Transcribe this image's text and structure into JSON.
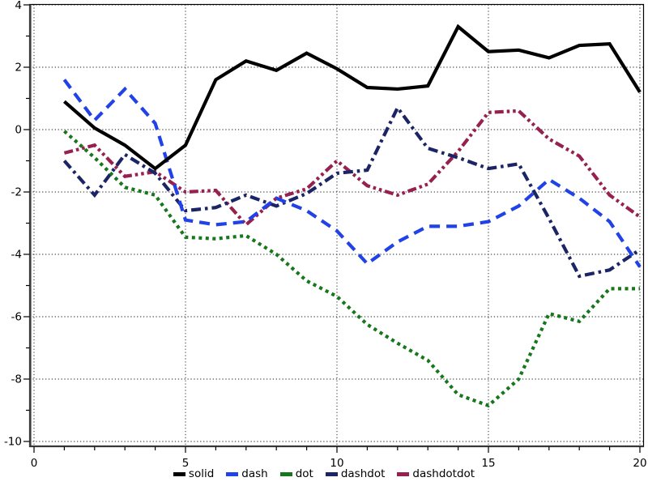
{
  "chart_data": {
    "type": "line",
    "title": "",
    "xlabel": "",
    "ylabel": "",
    "xlim": [
      0,
      20
    ],
    "ylim": [
      -10,
      4
    ],
    "grid": "dotted",
    "legend_position": "bottom-center",
    "x": [
      1,
      2,
      3,
      4,
      5,
      6,
      7,
      8,
      9,
      10,
      11,
      12,
      13,
      14,
      15,
      16,
      17,
      18,
      19,
      20
    ],
    "x_major_ticks": [
      0,
      5,
      10,
      15,
      20
    ],
    "x_tick_labels": [
      "0",
      "5",
      "10",
      "15",
      "20"
    ],
    "y_major_ticks": [
      4,
      2,
      0,
      -2,
      -4,
      -6,
      -8,
      -10
    ],
    "y_tick_labels": [
      "4",
      "2",
      "0",
      "-2",
      "-4",
      "-6",
      "-8",
      "-10"
    ],
    "series": [
      {
        "name": "solid",
        "style": "solid",
        "color": "#000000",
        "values": [
          0.9,
          0.05,
          -0.5,
          -1.25,
          -0.5,
          1.6,
          2.2,
          1.9,
          2.45,
          1.95,
          1.35,
          1.3,
          1.4,
          3.3,
          2.5,
          2.55,
          2.3,
          2.7,
          2.75,
          1.2
        ]
      },
      {
        "name": "dash",
        "style": "dash",
        "color": "#2142e6",
        "values": [
          1.6,
          0.3,
          1.3,
          0.2,
          -2.9,
          -3.05,
          -2.95,
          -2.2,
          -2.6,
          -3.25,
          -4.3,
          -3.6,
          -3.1,
          -3.1,
          -2.95,
          -2.45,
          -1.6,
          -2.2,
          -2.95,
          -4.4
        ]
      },
      {
        "name": "dot",
        "style": "dot",
        "color": "#17771c",
        "values": [
          -0.05,
          -0.9,
          -1.85,
          -2.1,
          -3.45,
          -3.5,
          -3.4,
          -4.0,
          -4.85,
          -5.35,
          -6.25,
          -6.85,
          -7.4,
          -8.5,
          -8.85,
          -8.0,
          -5.9,
          -6.15,
          -5.1,
          -5.1
        ]
      },
      {
        "name": "dashdot",
        "style": "dashdot",
        "color": "#1b2565",
        "values": [
          -1.0,
          -2.1,
          -0.8,
          -1.4,
          -2.6,
          -2.5,
          -2.1,
          -2.45,
          -2.05,
          -1.4,
          -1.3,
          0.7,
          -0.6,
          -0.9,
          -1.25,
          -1.1,
          -2.85,
          -4.7,
          -4.5,
          -3.85
        ]
      },
      {
        "name": "dashdotdot",
        "style": "dashdotdot",
        "color": "#96204e",
        "values": [
          -0.75,
          -0.5,
          -1.5,
          -1.35,
          -2.0,
          -1.95,
          -3.05,
          -2.2,
          -1.9,
          -1.0,
          -1.8,
          -2.1,
          -1.75,
          -0.7,
          0.55,
          0.6,
          -0.3,
          -0.85,
          -2.1,
          -2.8
        ]
      }
    ]
  },
  "legend": {
    "items": [
      {
        "label": "solid"
      },
      {
        "label": "dash"
      },
      {
        "label": "dot"
      },
      {
        "label": "dashdot"
      },
      {
        "label": "dashdotdot"
      }
    ]
  }
}
